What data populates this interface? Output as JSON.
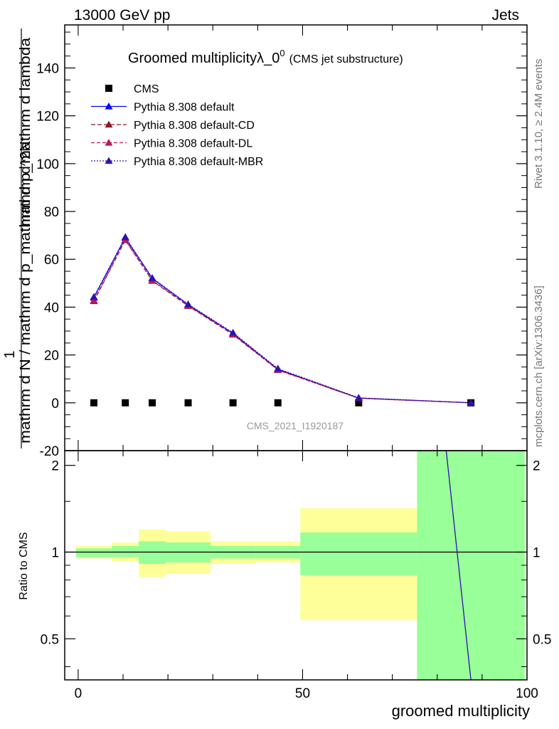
{
  "header": {
    "left": "13000 GeV pp",
    "right": "Jets"
  },
  "side_labels": {
    "rivet": "Rivet 3.1.10, ≥ 2.4M events",
    "mcplots": "mcplots.cern.ch [arXiv:1306.3436]"
  },
  "analysis_id": "CMS_2021_I1920187",
  "chart_data": {
    "type": "line",
    "title": "Groomed multiplicityλ_0",
    "title_sup": "0",
    "subtitle": "(CMS jet substructure)",
    "ylabel_numerator": "1",
    "ylabel_numerator_right": "mathrm d^2N",
    "ylabel_denominator": "mathrm d N / mathrm d p_mathrm d p_mathrm d lambda",
    "xlabel": "groomed multiplicity",
    "ratio_ylabel": "Ratio to CMS",
    "xlim": [
      -3,
      100
    ],
    "ylim": [
      -20,
      158
    ],
    "ratio_ylim": [
      0.36,
      2.25
    ],
    "x_ticks": [
      0,
      50,
      100
    ],
    "y_ticks": [
      -20,
      0,
      20,
      40,
      60,
      80,
      100,
      120,
      140
    ],
    "ratio_ticks": [
      0.5,
      1,
      2
    ],
    "ratio_ticks_labeled": [
      "0.5",
      "1",
      "2"
    ],
    "legend_position": "top-left",
    "series": [
      {
        "name": "CMS",
        "x": [
          3.5,
          10.5,
          16.5,
          24.5,
          34.5,
          44.5,
          62.5,
          87.5
        ],
        "values": [
          0,
          0,
          0,
          0,
          0,
          0,
          0,
          0
        ],
        "color": "#000000"
      },
      {
        "name": "Pythia 8.308 default",
        "x": [
          3.5,
          10.5,
          16.5,
          24.5,
          34.5,
          44.5,
          62.5,
          87.5
        ],
        "values": [
          44,
          69,
          52,
          41,
          29,
          14,
          2,
          0
        ],
        "color": "#0000ff"
      },
      {
        "name": "Pythia 8.308 default-CD",
        "x": [
          3.5,
          10.5,
          16.5,
          24.5,
          34.5,
          44.5,
          62.5,
          87.5
        ],
        "values": [
          42.5,
          68,
          51,
          40.5,
          28.5,
          13.7,
          1.9,
          0
        ],
        "color": "#8b1a2b"
      },
      {
        "name": "Pythia 8.308 default-DL",
        "x": [
          3.5,
          10.5,
          16.5,
          24.5,
          34.5,
          44.5,
          62.5,
          87.5
        ],
        "values": [
          42.8,
          68.2,
          51.2,
          40.7,
          28.7,
          13.8,
          1.9,
          0
        ],
        "color": "#b8195a"
      },
      {
        "name": "Pythia 8.308 default-MBR",
        "x": [
          3.5,
          10.5,
          16.5,
          24.5,
          34.5,
          44.5,
          62.5,
          87.5
        ],
        "values": [
          44.3,
          69.3,
          52.2,
          41.2,
          29.3,
          14.3,
          2.1,
          0
        ],
        "color": "#3010b0"
      }
    ],
    "ratio_bands": [
      {
        "x0": -0.5,
        "x1": 7.5,
        "green": [
          0.96,
          1.03
        ],
        "yellow": [
          0.95,
          1.05
        ]
      },
      {
        "x0": 7.5,
        "x1": 13.5,
        "green": [
          0.96,
          1.05
        ],
        "yellow": [
          0.93,
          1.08
        ]
      },
      {
        "x0": 13.5,
        "x1": 19.5,
        "green": [
          0.91,
          1.09
        ],
        "yellow": [
          0.82,
          1.2
        ]
      },
      {
        "x0": 19.5,
        "x1": 29.5,
        "green": [
          0.92,
          1.08
        ],
        "yellow": [
          0.84,
          1.18
        ]
      },
      {
        "x0": 29.5,
        "x1": 39.5,
        "green": [
          0.95,
          1.05
        ],
        "yellow": [
          0.91,
          1.09
        ]
      },
      {
        "x0": 39.5,
        "x1": 49.5,
        "green": [
          0.95,
          1.05
        ],
        "yellow": [
          0.92,
          1.09
        ]
      },
      {
        "x0": 49.5,
        "x1": 75.5,
        "green": [
          0.83,
          1.17
        ],
        "yellow": [
          0.58,
          1.42
        ]
      },
      {
        "x0": 75.5,
        "x1": 99.5,
        "green": [
          0.36,
          2.25
        ],
        "yellow": [
          0.36,
          2.25
        ]
      }
    ],
    "ratio_line": {
      "x": [
        82,
        87.5
      ],
      "values": [
        2.25,
        0.36
      ],
      "color": "#3010b0"
    },
    "colors": {
      "green_band": "#99ff99",
      "yellow_band": "#ffff99"
    }
  }
}
